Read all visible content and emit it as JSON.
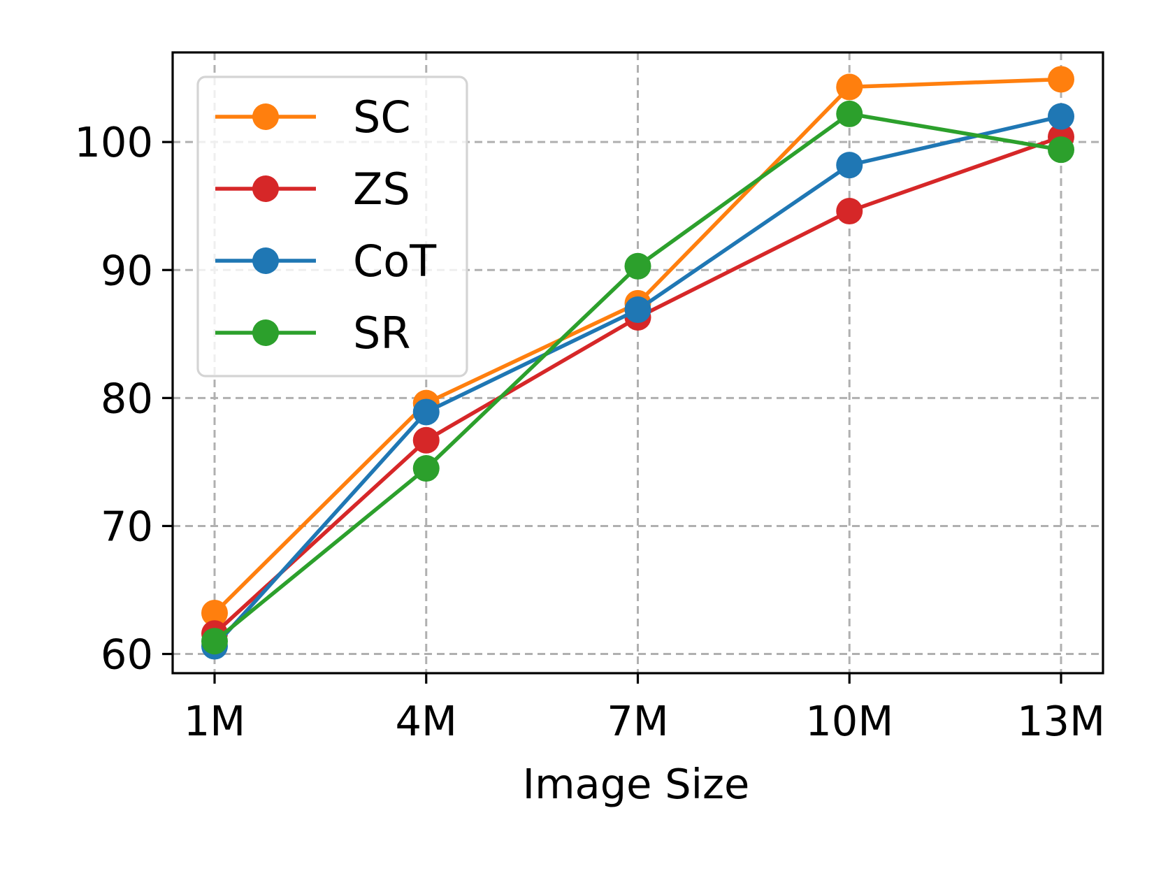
{
  "chart_data": {
    "type": "line",
    "title": "",
    "xlabel": "Image Size",
    "ylabel": "",
    "categories": [
      "1M",
      "4M",
      "7M",
      "10M",
      "13M"
    ],
    "ylim": [
      58.5,
      107
    ],
    "yticks": [
      60,
      70,
      80,
      90,
      100
    ],
    "grid": true,
    "legend_position": "top-left",
    "series": [
      {
        "name": "SC",
        "color": "#ff7f0e",
        "values": [
          63.2,
          79.6,
          87.4,
          104.3,
          104.9
        ]
      },
      {
        "name": "ZS",
        "color": "#d62728",
        "values": [
          61.6,
          76.7,
          86.3,
          94.6,
          100.4
        ]
      },
      {
        "name": "CoT",
        "color": "#1f77b4",
        "values": [
          60.6,
          78.9,
          86.9,
          98.2,
          102.0
        ]
      },
      {
        "name": "SR",
        "color": "#2ca02c",
        "values": [
          61.0,
          74.5,
          90.3,
          102.2,
          99.4
        ]
      }
    ]
  }
}
